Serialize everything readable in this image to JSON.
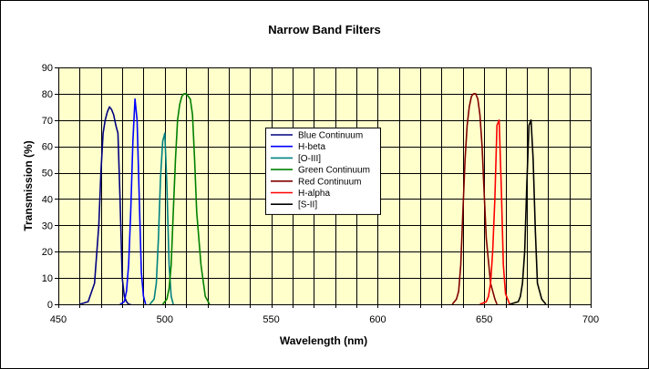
{
  "chart_data": {
    "type": "line",
    "title": "Narrow Band Filters",
    "xlabel": "Wavelength (nm)",
    "ylabel": "Transmission (%)",
    "xlim": [
      450,
      700
    ],
    "ylim": [
      0,
      90
    ],
    "x_major_ticks": [
      "450",
      "500",
      "550",
      "600",
      "650",
      "700"
    ],
    "y_ticks": [
      "0",
      "10",
      "20",
      "30",
      "40",
      "50",
      "60",
      "70",
      "80",
      "90"
    ],
    "x_minor_step": 10,
    "y_step": 10,
    "grid": true,
    "plot_background": "#ffffcc",
    "legend_position": "center",
    "series": [
      {
        "name": "Blue Continuum",
        "color": "#000080",
        "x": [
          460,
          464,
          467,
          469,
          470,
          471,
          472,
          473,
          474,
          475,
          476,
          477,
          478,
          479,
          480,
          481,
          482,
          483,
          484
        ],
        "y": [
          0,
          1,
          8,
          30,
          50,
          65,
          70,
          73,
          75,
          74,
          72,
          68,
          65,
          40,
          10,
          3,
          1,
          0,
          0
        ]
      },
      {
        "name": "H-beta",
        "color": "#0000ff",
        "x": [
          479,
          481,
          482,
          483,
          484,
          485,
          486,
          487,
          488,
          489,
          490,
          491
        ],
        "y": [
          0,
          1,
          5,
          15,
          35,
          62,
          78,
          70,
          40,
          12,
          3,
          0
        ]
      },
      {
        "name": "[O-III]",
        "color": "#008080",
        "x": [
          493,
          495,
          496,
          497,
          498,
          499,
          500,
          501,
          502,
          503,
          504
        ],
        "y": [
          0,
          2,
          8,
          25,
          48,
          62,
          65,
          45,
          15,
          3,
          0
        ]
      },
      {
        "name": "Green Continuum",
        "color": "#008000",
        "x": [
          499,
          501,
          502,
          503,
          504,
          505,
          506,
          507,
          508,
          509,
          510,
          511,
          512,
          513,
          514,
          515,
          517,
          519,
          521
        ],
        "y": [
          0,
          2,
          6,
          15,
          35,
          55,
          70,
          76,
          79,
          80,
          80,
          79,
          78,
          72,
          55,
          35,
          15,
          3,
          0
        ]
      },
      {
        "name": "Red Continuum",
        "color": "#800000",
        "x": [
          635,
          637,
          638,
          639,
          640,
          641,
          642,
          643,
          644,
          645,
          646,
          647,
          648,
          649,
          650,
          651,
          653,
          655,
          656
        ],
        "y": [
          0,
          2,
          5,
          15,
          35,
          55,
          68,
          75,
          79,
          80,
          80,
          78,
          72,
          60,
          42,
          25,
          8,
          2,
          0
        ]
      },
      {
        "name": "H-alpha",
        "color": "#ff0000",
        "x": [
          648,
          651,
          652,
          653,
          654,
          655,
          656,
          657,
          658,
          659,
          660,
          662
        ],
        "y": [
          0,
          1,
          3,
          8,
          20,
          40,
          68,
          70,
          45,
          15,
          4,
          0
        ]
      },
      {
        "name": "[S-II]",
        "color": "#000000",
        "x": [
          662,
          666,
          667,
          668,
          669,
          670,
          671,
          672,
          673,
          674,
          675,
          677,
          679
        ],
        "y": [
          0,
          1,
          3,
          8,
          20,
          45,
          68,
          70,
          55,
          28,
          8,
          2,
          0
        ]
      }
    ]
  }
}
